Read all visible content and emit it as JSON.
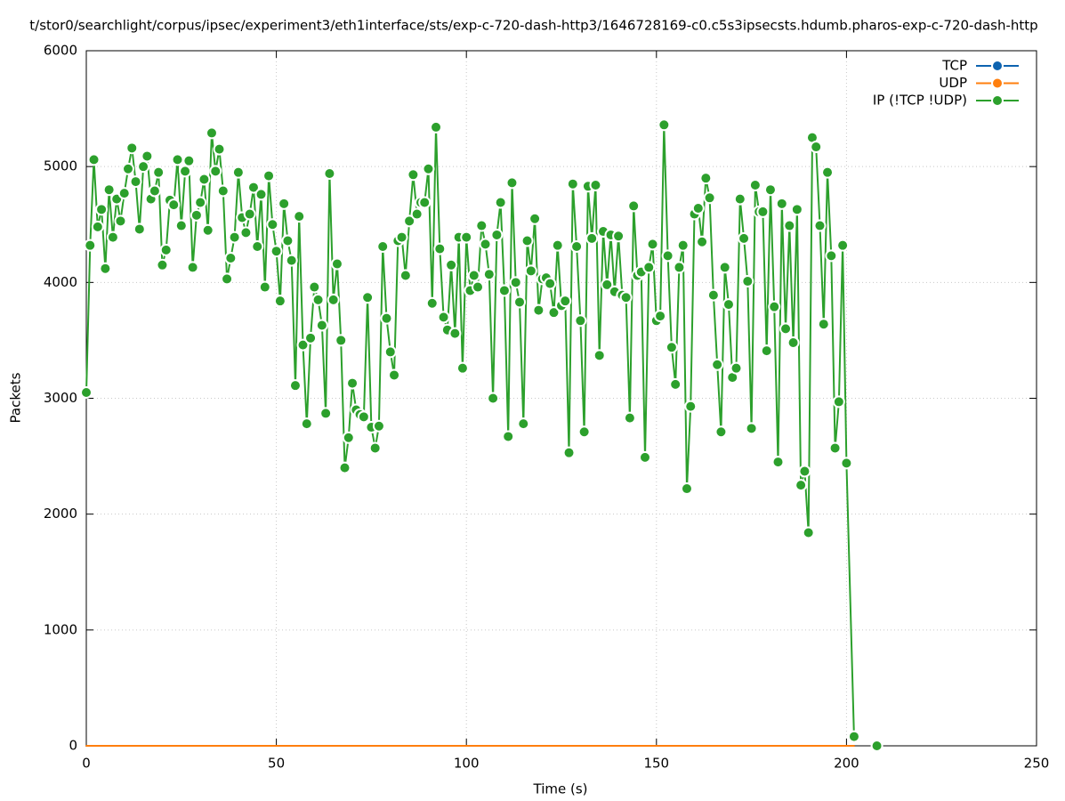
{
  "chart_data": {
    "type": "line",
    "title": "t/stor0/searchlight/corpus/ipsec/experiment3/eth1interface/sts/exp-c-720-dash-http3/1646728169-c0.c5s3ipsecsts.hdumb.pharos-exp-c-720-dash-http",
    "xlabel": "Time (s)",
    "ylabel": "Packets",
    "xlim": [
      0,
      250
    ],
    "xticks": [
      0,
      50,
      100,
      150,
      200,
      250
    ],
    "ylim": [
      0,
      6000
    ],
    "yticks": [
      0,
      1000,
      2000,
      3000,
      4000,
      5000,
      6000
    ],
    "grid": true,
    "legend": "top-right",
    "x": [
      0,
      1,
      2,
      3,
      4,
      5,
      6,
      7,
      8,
      9,
      10,
      11,
      12,
      13,
      14,
      15,
      16,
      17,
      18,
      19,
      20,
      21,
      22,
      23,
      24,
      25,
      26,
      27,
      28,
      29,
      30,
      31,
      32,
      33,
      34,
      35,
      36,
      37,
      38,
      39,
      40,
      41,
      42,
      43,
      44,
      45,
      46,
      47,
      48,
      49,
      50,
      51,
      52,
      53,
      54,
      55,
      56,
      57,
      58,
      59,
      60,
      61,
      62,
      63,
      64,
      65,
      66,
      67,
      68,
      69,
      70,
      71,
      72,
      73,
      74,
      75,
      76,
      77,
      78,
      79,
      80,
      81,
      82,
      83,
      84,
      85,
      86,
      87,
      88,
      89,
      90,
      91,
      92,
      93,
      94,
      95,
      96,
      97,
      98,
      99,
      100,
      101,
      102,
      103,
      104,
      105,
      106,
      107,
      108,
      109,
      110,
      111,
      112,
      113,
      114,
      115,
      116,
      117,
      118,
      119,
      120,
      121,
      122,
      123,
      124,
      125,
      126,
      127,
      128,
      129,
      130,
      131,
      132,
      133,
      134,
      135,
      136,
      137,
      138,
      139,
      140,
      141,
      142,
      143,
      144,
      145,
      146,
      147,
      148,
      149,
      150,
      151,
      152,
      153,
      154,
      155,
      156,
      157,
      158,
      159,
      160,
      161,
      162,
      163,
      164,
      165,
      166,
      167,
      168,
      169,
      170,
      171,
      172,
      173,
      174,
      175,
      176,
      177,
      178,
      179,
      180,
      181,
      182,
      183,
      184,
      185,
      186,
      187,
      188,
      189,
      190,
      191,
      192,
      193,
      194,
      195,
      196,
      197,
      198,
      199,
      200,
      202,
      203,
      208
    ],
    "series": [
      {
        "name": "TCP",
        "color": "#0d63b0",
        "marker": "tiny",
        "values": [
          0,
          0,
          0,
          0,
          0,
          0,
          0,
          0,
          0,
          0,
          0,
          0,
          0,
          0,
          0,
          0,
          0,
          0,
          0,
          0,
          0,
          0,
          0,
          0,
          0,
          0,
          0,
          0,
          0,
          0,
          0,
          0,
          0,
          0,
          0,
          0,
          0,
          0,
          0,
          0,
          0,
          0,
          0,
          0,
          0,
          0,
          0,
          0,
          0,
          0,
          0,
          0,
          0,
          0,
          0,
          0,
          0,
          0,
          0,
          0,
          0,
          0,
          0,
          0,
          0,
          0,
          0,
          0,
          0,
          0,
          0,
          0,
          0,
          0,
          0,
          0,
          0,
          0,
          0,
          0,
          0,
          0,
          0,
          0,
          0,
          0,
          0,
          0,
          0,
          0,
          0,
          0,
          0,
          0,
          0,
          0,
          0,
          0,
          0,
          0,
          0,
          0,
          0,
          0,
          0,
          0,
          0,
          0,
          0,
          0,
          0,
          0,
          0,
          0,
          0,
          0,
          0,
          0,
          0,
          0,
          0,
          0,
          0,
          0,
          0,
          0,
          0,
          0,
          0,
          0,
          0,
          0,
          0,
          0,
          0,
          0,
          0,
          0,
          0,
          0,
          0,
          0,
          0,
          0,
          0,
          0,
          0,
          0,
          0,
          0,
          0,
          0,
          0,
          0,
          0,
          0,
          0,
          0,
          0,
          0,
          0,
          0,
          0,
          0,
          0,
          0,
          0,
          0,
          0,
          0,
          0,
          0,
          0,
          0,
          0,
          0,
          0,
          0,
          0,
          0,
          0,
          0,
          0,
          0,
          0,
          0,
          0,
          0,
          0,
          0,
          0,
          0,
          0,
          0,
          0,
          0,
          0,
          0,
          0,
          0,
          0,
          0,
          null,
          null
        ]
      },
      {
        "name": "UDP",
        "color": "#ff7f0e",
        "marker": "tiny",
        "values": [
          0,
          0,
          0,
          0,
          0,
          0,
          0,
          0,
          0,
          0,
          0,
          0,
          0,
          0,
          0,
          0,
          0,
          0,
          0,
          0,
          0,
          0,
          0,
          0,
          0,
          0,
          0,
          0,
          0,
          0,
          0,
          0,
          0,
          0,
          0,
          0,
          0,
          0,
          0,
          0,
          0,
          0,
          0,
          0,
          0,
          0,
          0,
          0,
          0,
          0,
          0,
          0,
          0,
          0,
          0,
          0,
          0,
          0,
          0,
          0,
          0,
          0,
          0,
          0,
          0,
          0,
          0,
          0,
          0,
          0,
          0,
          0,
          0,
          0,
          0,
          0,
          0,
          0,
          0,
          0,
          0,
          0,
          0,
          0,
          0,
          0,
          0,
          0,
          0,
          0,
          0,
          0,
          0,
          0,
          0,
          0,
          0,
          0,
          0,
          0,
          0,
          0,
          0,
          0,
          0,
          0,
          0,
          0,
          0,
          0,
          0,
          0,
          0,
          0,
          0,
          0,
          0,
          0,
          0,
          0,
          0,
          0,
          0,
          0,
          0,
          0,
          0,
          0,
          0,
          0,
          0,
          0,
          0,
          0,
          0,
          0,
          0,
          0,
          0,
          0,
          0,
          0,
          0,
          0,
          0,
          0,
          0,
          0,
          0,
          0,
          0,
          0,
          0,
          0,
          0,
          0,
          0,
          0,
          0,
          0,
          0,
          0,
          0,
          0,
          0,
          0,
          0,
          0,
          0,
          0,
          0,
          0,
          0,
          0,
          0,
          0,
          0,
          0,
          0,
          0,
          0,
          0,
          0,
          0,
          0,
          0,
          0,
          0,
          0,
          0,
          0,
          0,
          0,
          0,
          0,
          0,
          0,
          0,
          0,
          0,
          0,
          0,
          null,
          null
        ]
      },
      {
        "name": "IP (!TCP  !UDP)",
        "color": "#2ca02c",
        "marker": "dot",
        "values": [
          3050,
          4320,
          5060,
          4480,
          4630,
          4120,
          4800,
          4390,
          4720,
          4530,
          4770,
          4980,
          5160,
          4870,
          4460,
          5000,
          5090,
          4720,
          4790,
          4950,
          4150,
          4280,
          4710,
          4670,
          5060,
          4490,
          4960,
          5050,
          4130,
          4580,
          4690,
          4890,
          4450,
          5290,
          4960,
          5150,
          4790,
          4030,
          4210,
          4390,
          4950,
          4560,
          4430,
          4590,
          4820,
          4310,
          4760,
          3960,
          4920,
          4500,
          4270,
          3840,
          4680,
          4360,
          4190,
          3110,
          4570,
          3460,
          2780,
          3520,
          3960,
          3850,
          3630,
          2870,
          4940,
          3850,
          4160,
          3500,
          2400,
          2660,
          3130,
          2900,
          2860,
          2840,
          3870,
          2750,
          2570,
          2760,
          4310,
          3690,
          3400,
          3200,
          4360,
          4390,
          4060,
          4530,
          4930,
          4590,
          4690,
          4690,
          4980,
          3820,
          5340,
          4290,
          3700,
          3590,
          4150,
          3560,
          4390,
          3260,
          4390,
          3930,
          4060,
          3960,
          4490,
          4330,
          4070,
          3000,
          4410,
          4690,
          3930,
          2670,
          4860,
          4000,
          3830,
          2780,
          4360,
          4100,
          4550,
          3760,
          4030,
          4040,
          3990,
          3740,
          4320,
          3800,
          3840,
          2530,
          4850,
          4310,
          3670,
          2710,
          4830,
          4380,
          4840,
          3370,
          4440,
          3980,
          4410,
          3920,
          4400,
          3890,
          3870,
          2830,
          4660,
          4060,
          4090,
          2490,
          4130,
          4330,
          3670,
          3710,
          5360,
          4230,
          3440,
          3120,
          4130,
          4320,
          2220,
          2930,
          4590,
          4640,
          4350,
          4900,
          4730,
          3890,
          3290,
          2710,
          4130,
          3810,
          3180,
          3260,
          4720,
          4380,
          4010,
          2740,
          4840,
          4610,
          4610,
          3410,
          4800,
          3790,
          2450,
          4680,
          3600,
          4490,
          3480,
          4630,
          2250,
          2370,
          1840,
          5250,
          5170,
          4490,
          3640,
          4950,
          4230,
          2570,
          2970,
          4320,
          2440,
          80,
          null,
          0
        ]
      }
    ]
  }
}
